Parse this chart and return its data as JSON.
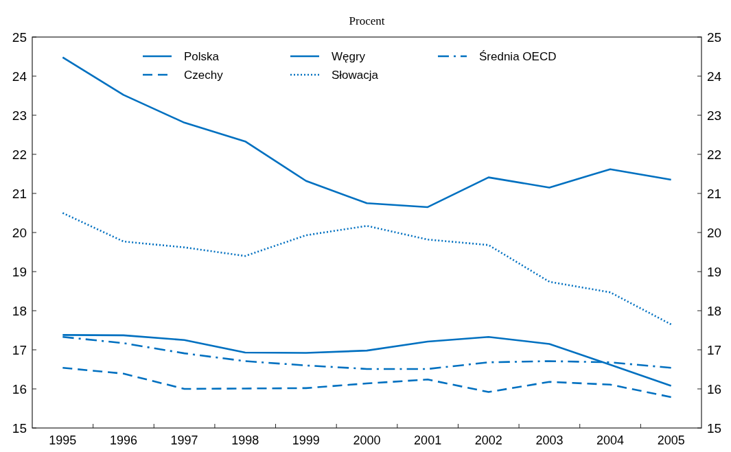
{
  "chart_data": {
    "type": "line",
    "subtitle": "Procent",
    "categories": [
      "1995",
      "1996",
      "1997",
      "1998",
      "1999",
      "2000",
      "2001",
      "2002",
      "2003",
      "2004",
      "2005"
    ],
    "series": [
      {
        "name": "Polska",
        "color": "#0070c0",
        "line_style": "solid",
        "values": [
          17.38,
          17.37,
          17.25,
          16.93,
          16.92,
          16.98,
          17.21,
          17.33,
          17.15,
          16.62,
          16.08
        ]
      },
      {
        "name": "Czechy",
        "color": "#0070c0",
        "line_style": "dashed",
        "values": [
          16.54,
          16.39,
          16.0,
          16.01,
          16.02,
          16.14,
          16.24,
          15.92,
          16.18,
          16.11,
          15.79
        ]
      },
      {
        "name": "Węgry",
        "color": "#0070c0",
        "line_style": "solid",
        "values": [
          24.48,
          23.52,
          22.81,
          22.33,
          21.32,
          20.75,
          20.65,
          21.41,
          21.15,
          21.62,
          21.35
        ]
      },
      {
        "name": "Słowacja",
        "color": "#0070c0",
        "line_style": "dotted",
        "values": [
          20.5,
          19.77,
          19.62,
          19.4,
          19.93,
          20.17,
          19.82,
          19.68,
          18.74,
          18.47,
          17.65
        ]
      },
      {
        "name": "Średnia OECD",
        "color": "#0070c0",
        "line_style": "dashdot",
        "values": [
          17.33,
          17.17,
          16.91,
          16.71,
          16.6,
          16.51,
          16.51,
          16.68,
          16.71,
          16.68,
          16.54
        ]
      }
    ],
    "ylim": [
      15,
      25
    ],
    "yticks": [
      15,
      16,
      17,
      18,
      19,
      20,
      21,
      22,
      23,
      24,
      25
    ],
    "y2lim": [
      15,
      25
    ],
    "y2ticks": [
      15,
      16,
      17,
      18,
      19,
      20,
      21,
      22,
      23,
      24,
      25
    ],
    "grid": false,
    "legend": "top"
  }
}
